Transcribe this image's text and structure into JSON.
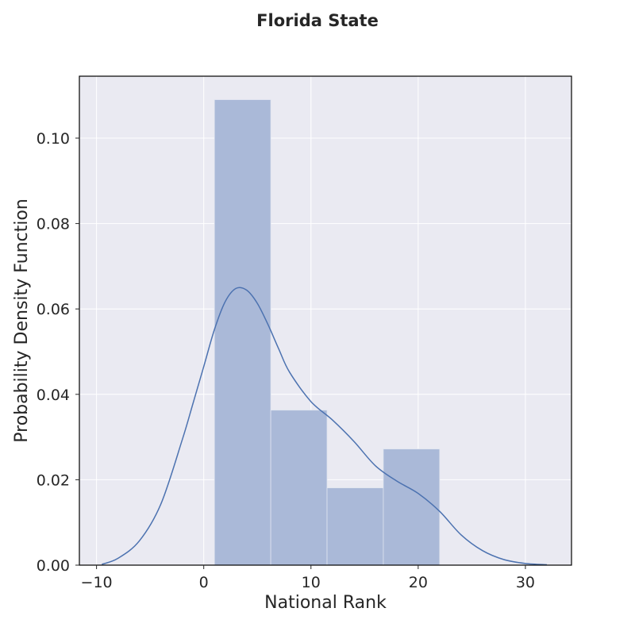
{
  "chart_data": {
    "type": "bar",
    "title": "Florida State",
    "xlabel": "National Rank",
    "ylabel": "Probability Density Function",
    "xlim": [
      -11.6,
      34.3
    ],
    "ylim": [
      0,
      0.1145
    ],
    "xticks": [
      -10,
      0,
      10,
      20,
      30
    ],
    "xtick_labels": [
      "−10",
      "0",
      "10",
      "20",
      "30"
    ],
    "yticks": [
      0.0,
      0.02,
      0.04,
      0.06,
      0.08,
      0.1
    ],
    "ytick_labels": [
      "0.00",
      "0.02",
      "0.04",
      "0.06",
      "0.08",
      "0.10"
    ],
    "grid": true,
    "colors": {
      "background": "#eaeaf2",
      "grid": "#ffffff",
      "bar": "#aab9d8",
      "kde_line": "#4c72b0",
      "frame": "#000000"
    },
    "histogram": {
      "bin_edges": [
        1.0,
        6.25,
        11.5,
        16.75,
        22.0
      ],
      "densities": [
        0.109,
        0.0363,
        0.0181,
        0.0272
      ]
    },
    "kde": {
      "x": [
        -9.5,
        -8,
        -6,
        -4,
        -2,
        -1,
        0,
        1,
        2,
        3,
        4,
        5,
        6,
        7,
        8,
        10,
        12,
        14,
        16,
        18,
        20,
        22,
        24,
        26,
        28,
        30,
        32
      ],
      "y": [
        0.0002,
        0.0016,
        0.0057,
        0.0143,
        0.0294,
        0.0379,
        0.0465,
        0.0552,
        0.0617,
        0.0648,
        0.0644,
        0.0613,
        0.0563,
        0.0506,
        0.0452,
        0.0383,
        0.034,
        0.029,
        0.0233,
        0.0197,
        0.0168,
        0.0126,
        0.0071,
        0.0034,
        0.0013,
        0.0004,
        0.0001
      ]
    }
  }
}
